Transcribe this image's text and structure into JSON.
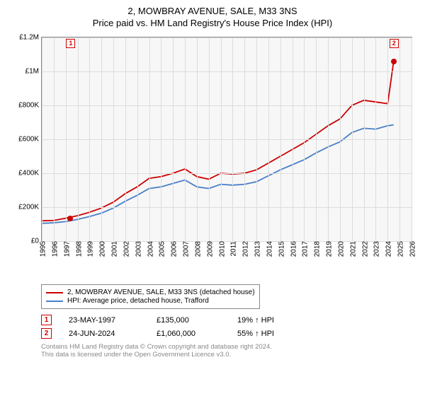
{
  "titles": {
    "line1": "2, MOWBRAY AVENUE, SALE, M33 3NS",
    "line2": "Price paid vs. HM Land Registry's House Price Index (HPI)"
  },
  "chart": {
    "type": "line",
    "background_color": "#f7f7f7",
    "border_color": "#888888",
    "grid_color": "#dcdcdc",
    "x": {
      "years": [
        1995,
        1996,
        1997,
        1998,
        1999,
        2000,
        2001,
        2002,
        2003,
        2004,
        2005,
        2006,
        2007,
        2008,
        2009,
        2010,
        2011,
        2012,
        2013,
        2014,
        2015,
        2016,
        2017,
        2018,
        2019,
        2020,
        2021,
        2022,
        2023,
        2024,
        2025,
        2026
      ],
      "min": 1995,
      "max": 2026
    },
    "y": {
      "ticks": [
        0,
        200000,
        400000,
        600000,
        800000,
        1000000,
        1200000
      ],
      "tick_labels": [
        "£0",
        "£200K",
        "£400K",
        "£600K",
        "£800K",
        "£1M",
        "£1.2M"
      ],
      "min": 0,
      "max": 1200000
    },
    "axis_label_fontsize": 10,
    "line_width": 1.8,
    "series": [
      {
        "name": "2, MOWBRAY AVENUE, SALE, M33 3NS (detached house)",
        "color": "#cc0000",
        "years": [
          1995,
          1996,
          1997,
          1998,
          1999,
          2000,
          2001,
          2002,
          2003,
          2004,
          2005,
          2006,
          2007,
          2008,
          2009,
          2010,
          2011,
          2012,
          2013,
          2014,
          2015,
          2016,
          2017,
          2018,
          2019,
          2020,
          2021,
          2022,
          2023,
          2024,
          2024.5
        ],
        "values": [
          120000,
          122000,
          135000,
          150000,
          170000,
          195000,
          230000,
          280000,
          320000,
          370000,
          380000,
          400000,
          425000,
          380000,
          365000,
          400000,
          395000,
          400000,
          420000,
          460000,
          500000,
          540000,
          580000,
          630000,
          680000,
          720000,
          800000,
          830000,
          820000,
          810000,
          1060000
        ]
      },
      {
        "name": "HPI: Average price, detached house, Trafford",
        "color": "#4a7fc7",
        "years": [
          1995,
          1996,
          1997,
          1998,
          1999,
          2000,
          2001,
          2002,
          2003,
          2004,
          2005,
          2006,
          2007,
          2008,
          2009,
          2010,
          2011,
          2012,
          2013,
          2014,
          2015,
          2016,
          2017,
          2018,
          2019,
          2020,
          2021,
          2022,
          2023,
          2024,
          2024.5
        ],
        "values": [
          105000,
          108000,
          115000,
          128000,
          145000,
          165000,
          195000,
          235000,
          270000,
          310000,
          320000,
          340000,
          360000,
          320000,
          310000,
          335000,
          330000,
          335000,
          350000,
          385000,
          420000,
          450000,
          480000,
          520000,
          555000,
          585000,
          640000,
          665000,
          660000,
          680000,
          685000
        ]
      }
    ],
    "markers": [
      {
        "n": "1",
        "year": 1997.4,
        "value": 135000,
        "color": "#cc0000",
        "label_pos": "top"
      },
      {
        "n": "2",
        "year": 2024.5,
        "value": 1060000,
        "color": "#cc0000",
        "label_pos": "top"
      }
    ]
  },
  "legend": {
    "items": [
      {
        "color": "#cc0000",
        "text": "2, MOWBRAY AVENUE, SALE, M33 3NS (detached house)"
      },
      {
        "color": "#4a7fc7",
        "text": "HPI: Average price, detached house, Trafford"
      }
    ]
  },
  "transactions": [
    {
      "n": "1",
      "color": "#cc0000",
      "date": "23-MAY-1997",
      "price": "£135,000",
      "hpi": "19% ↑ HPI"
    },
    {
      "n": "2",
      "color": "#cc0000",
      "date": "24-JUN-2024",
      "price": "£1,060,000",
      "hpi": "55% ↑ HPI"
    }
  ],
  "footnote": {
    "line1": "Contains HM Land Registry data © Crown copyright and database right 2024.",
    "line2": "This data is licensed under the Open Government Licence v3.0."
  }
}
